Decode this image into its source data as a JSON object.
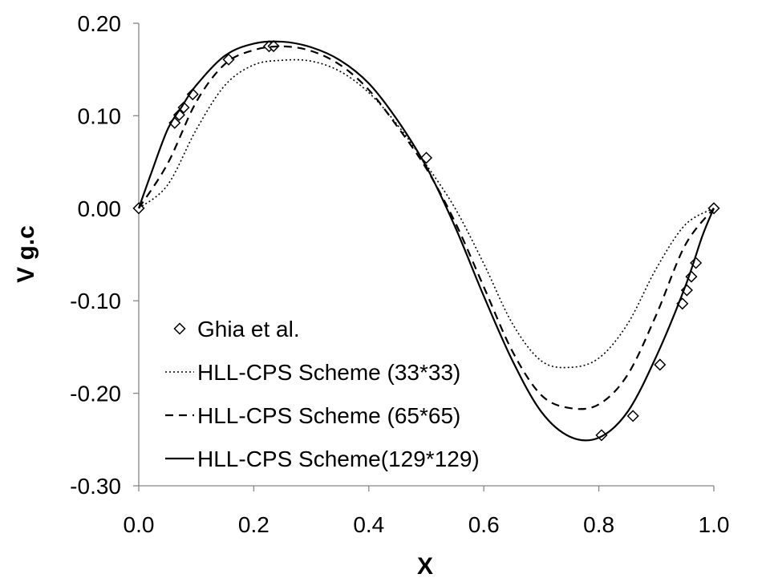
{
  "chart_data": {
    "type": "line",
    "title": "",
    "xlabel": "X",
    "ylabel": "V g.c",
    "xlim": [
      0.0,
      1.0
    ],
    "ylim": [
      -0.3,
      0.2
    ],
    "xticks": [
      "0.0",
      "0.2",
      "0.4",
      "0.6",
      "0.8",
      "1.0"
    ],
    "yticks": [
      "0.20",
      "0.10",
      "0.00",
      "-0.10",
      "-0.20",
      "-0.30"
    ],
    "grid": false,
    "legend_position": "bottom-left",
    "series": [
      {
        "name": "Ghia et al.",
        "style": "diamond-markers",
        "color": "#000000",
        "x": [
          0.0,
          0.0625,
          0.0703,
          0.0781,
          0.0938,
          0.1563,
          0.2266,
          0.2344,
          0.5,
          0.8047,
          0.8594,
          0.9063,
          0.9453,
          0.9531,
          0.9609,
          0.9688,
          1.0
        ],
        "y": [
          0.0,
          0.0923,
          0.1009,
          0.1089,
          0.1232,
          0.1608,
          0.1751,
          0.1753,
          0.0545,
          -0.2453,
          -0.2245,
          -0.1691,
          -0.1031,
          -0.0886,
          -0.0739,
          -0.0591,
          0.0
        ]
      },
      {
        "name": "HLL-CPS Scheme (33*33)",
        "style": "dotted",
        "color": "#000000",
        "x": [
          0.0,
          0.05,
          0.1,
          0.15,
          0.2,
          0.25,
          0.3,
          0.35,
          0.4,
          0.45,
          0.5,
          0.55,
          0.6,
          0.65,
          0.7,
          0.75,
          0.8,
          0.85,
          0.9,
          0.95,
          1.0
        ],
        "y": [
          0.0,
          0.025,
          0.085,
          0.133,
          0.155,
          0.16,
          0.159,
          0.148,
          0.125,
          0.09,
          0.047,
          0.0,
          -0.06,
          -0.125,
          -0.165,
          -0.172,
          -0.162,
          -0.125,
          -0.065,
          -0.018,
          0.0
        ]
      },
      {
        "name": "HLL-CPS Scheme (65*65)",
        "style": "dashed",
        "color": "#000000",
        "x": [
          0.0,
          0.05,
          0.1,
          0.15,
          0.2,
          0.25,
          0.3,
          0.35,
          0.4,
          0.45,
          0.5,
          0.55,
          0.6,
          0.65,
          0.7,
          0.75,
          0.8,
          0.85,
          0.9,
          0.95,
          1.0
        ],
        "y": [
          0.0,
          0.048,
          0.115,
          0.156,
          0.171,
          0.175,
          0.17,
          0.155,
          0.128,
          0.088,
          0.043,
          -0.015,
          -0.085,
          -0.155,
          -0.202,
          -0.216,
          -0.212,
          -0.18,
          -0.115,
          -0.04,
          0.0
        ]
      },
      {
        "name": "HLL-CPS Scheme(129*129)",
        "style": "solid",
        "color": "#000000",
        "x": [
          0.0,
          0.02,
          0.05,
          0.075,
          0.1,
          0.15,
          0.2,
          0.25,
          0.3,
          0.35,
          0.4,
          0.45,
          0.5,
          0.55,
          0.6,
          0.65,
          0.7,
          0.75,
          0.8,
          0.85,
          0.9,
          0.95,
          0.98,
          1.0
        ],
        "y": [
          0.0,
          0.035,
          0.085,
          0.11,
          0.133,
          0.165,
          0.178,
          0.18,
          0.174,
          0.16,
          0.135,
          0.095,
          0.045,
          -0.02,
          -0.095,
          -0.165,
          -0.22,
          -0.247,
          -0.248,
          -0.22,
          -0.16,
          -0.085,
          -0.03,
          0.0
        ]
      }
    ]
  }
}
